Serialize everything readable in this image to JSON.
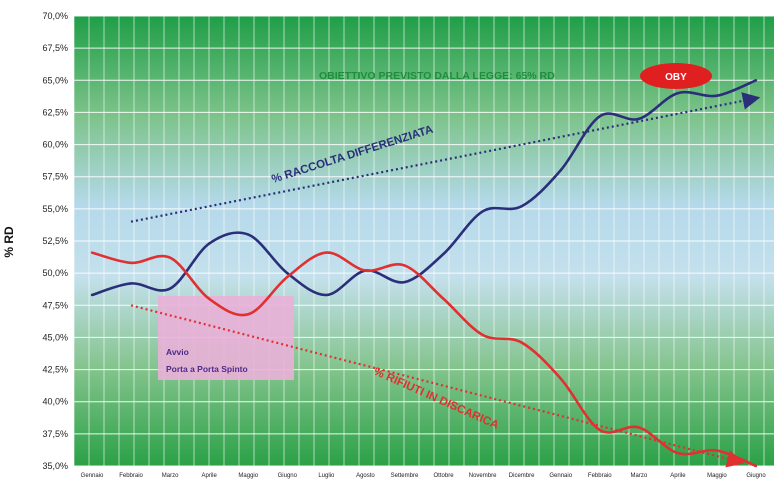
{
  "chart_data": {
    "type": "line",
    "ylabel": "% RD",
    "ytick_labels": [
      "35,0%",
      "37,5%",
      "40,0%",
      "42,5%",
      "45,0%",
      "47,5%",
      "50,0%",
      "52,5%",
      "55,0%",
      "57,5%",
      "60,0%",
      "62,5%",
      "65,0%",
      "67,5%",
      "70,0%"
    ],
    "categories": [
      "Gennaio",
      "Febbraio",
      "Marzo",
      "Aprile",
      "Maggio",
      "Giugno",
      "Luglio",
      "Agosto",
      "Settembre",
      "Ottobre",
      "Novembre",
      "Dicembre",
      "Gennaio",
      "Febbraio",
      "Marzo",
      "Aprile",
      "Maggio",
      "Giugno"
    ],
    "ylim": [
      35,
      70
    ],
    "grid": true,
    "series": [
      {
        "name": "% RACCOLTA DIFFERENZIATA",
        "color": "#2b2f7a",
        "values": [
          48.3,
          49.2,
          48.8,
          52.3,
          53.0,
          50.0,
          48.3,
          50.2,
          49.3,
          51.5,
          54.8,
          55.2,
          58.0,
          62.2,
          62.0,
          64.0,
          63.8,
          65.0
        ]
      },
      {
        "name": "% RIFIUTI IN DISCARICA",
        "color": "#e03030",
        "values": [
          51.6,
          50.8,
          51.2,
          48.0,
          46.8,
          49.7,
          51.6,
          50.2,
          50.6,
          48.0,
          45.2,
          44.6,
          41.8,
          37.8,
          38.0,
          36.0,
          36.2,
          35.0
        ]
      }
    ],
    "trend_lines": [
      {
        "name": "trend-raccolta",
        "color": "#2b2f7a",
        "from": [
          1,
          54.0
        ],
        "to": [
          17,
          63.6
        ]
      },
      {
        "name": "trend-discarica",
        "color": "#e03030",
        "from": [
          1,
          47.5
        ],
        "to": [
          16.6,
          35.3
        ]
      }
    ],
    "colors": {
      "grid_top": "#22a24a",
      "grid_mid": "#a8cfe6",
      "grid_bottom": "#37a84a",
      "grid_line": "#ffffff",
      "highlight_box": "#eab0d8",
      "oby_badge": "#e02020"
    },
    "annotations": {
      "target_text": "OBIETTIVO PREVISTO DALLA LEGGE: 65% RD",
      "oby_label": "OBY",
      "raccolta_label": "% RACCOLTA DIFFERENZIATA",
      "discarica_label": "% RIFIUTI IN DISCARICA",
      "box_line1": "Avvio",
      "box_line2": "Porta a Porta Spinto"
    }
  }
}
